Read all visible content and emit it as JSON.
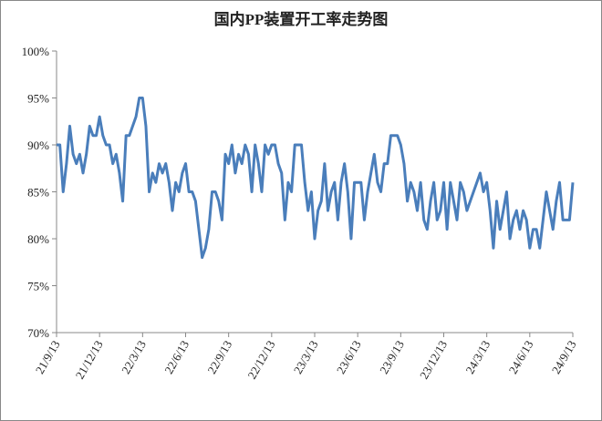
{
  "chart_data": {
    "type": "line",
    "title": "国内PP装置开工率走势图",
    "categories": [
      "21/9/13",
      null,
      null,
      null,
      null,
      null,
      null,
      null,
      null,
      null,
      null,
      null,
      null,
      "21/12/13",
      null,
      null,
      null,
      null,
      null,
      null,
      null,
      null,
      null,
      null,
      null,
      null,
      "22/3/13",
      null,
      null,
      null,
      null,
      null,
      null,
      null,
      null,
      null,
      null,
      null,
      null,
      "22/6/13",
      null,
      null,
      null,
      null,
      null,
      null,
      null,
      null,
      null,
      null,
      null,
      null,
      "22/9/13",
      null,
      null,
      null,
      null,
      null,
      null,
      null,
      null,
      null,
      null,
      null,
      null,
      "22/12/13",
      null,
      null,
      null,
      null,
      null,
      null,
      null,
      null,
      null,
      null,
      null,
      null,
      "23/3/13",
      null,
      null,
      null,
      null,
      null,
      null,
      null,
      null,
      null,
      null,
      null,
      null,
      "23/6/13",
      null,
      null,
      null,
      null,
      null,
      null,
      null,
      null,
      null,
      null,
      null,
      null,
      "23/9/13",
      null,
      null,
      null,
      null,
      null,
      null,
      null,
      null,
      null,
      null,
      null,
      null,
      "23/12/13",
      null,
      null,
      null,
      null,
      null,
      null,
      null,
      null,
      null,
      null,
      null,
      null,
      "24/3/13",
      null,
      null,
      null,
      null,
      null,
      null,
      null,
      null,
      null,
      null,
      null,
      null,
      "24/6/13",
      null,
      null,
      null,
      null,
      null,
      null,
      null,
      null,
      null,
      null,
      null,
      null,
      "24/9/13"
    ],
    "values": [
      90,
      90,
      85,
      88,
      92,
      89,
      88,
      89,
      87,
      89,
      92,
      91,
      91,
      93,
      91,
      90,
      90,
      88,
      89,
      87,
      84,
      91,
      91,
      92,
      93,
      95,
      95,
      92,
      85,
      87,
      86,
      88,
      87,
      88,
      86,
      83,
      86,
      85,
      87,
      88,
      85,
      85,
      84,
      81,
      78,
      79,
      81,
      85,
      85,
      84,
      82,
      89,
      88,
      90,
      87,
      89,
      88,
      90,
      89,
      85,
      90,
      88,
      85,
      90,
      89,
      90,
      90,
      88,
      87,
      82,
      86,
      85,
      90,
      90,
      90,
      86,
      83,
      85,
      80,
      83,
      84,
      88,
      83,
      85,
      86,
      82,
      86,
      88,
      85,
      80,
      86,
      86,
      86,
      82,
      85,
      87,
      89,
      86,
      85,
      88,
      88,
      91,
      91,
      91,
      90,
      88,
      84,
      86,
      85,
      83,
      86,
      82,
      81,
      84,
      86,
      82,
      83,
      86,
      81,
      86,
      84,
      82,
      86,
      85,
      83,
      84,
      85,
      86,
      87,
      85,
      86,
      83,
      79,
      84,
      81,
      83,
      85,
      80,
      82,
      83,
      81,
      83,
      82,
      79,
      81,
      81,
      79,
      82,
      85,
      83,
      81,
      84,
      86,
      82,
      82,
      82,
      86
    ],
    "color": "#4a7ebb",
    "ylim": [
      70,
      100
    ],
    "yticks": [
      {
        "value": 70,
        "label": "70%"
      },
      {
        "value": 75,
        "label": "75%"
      },
      {
        "value": 80,
        "label": "80%"
      },
      {
        "value": 85,
        "label": "85%"
      },
      {
        "value": 90,
        "label": "90%"
      },
      {
        "value": 95,
        "label": "95%"
      },
      {
        "value": 100,
        "label": "100%"
      }
    ],
    "grid": false
  }
}
